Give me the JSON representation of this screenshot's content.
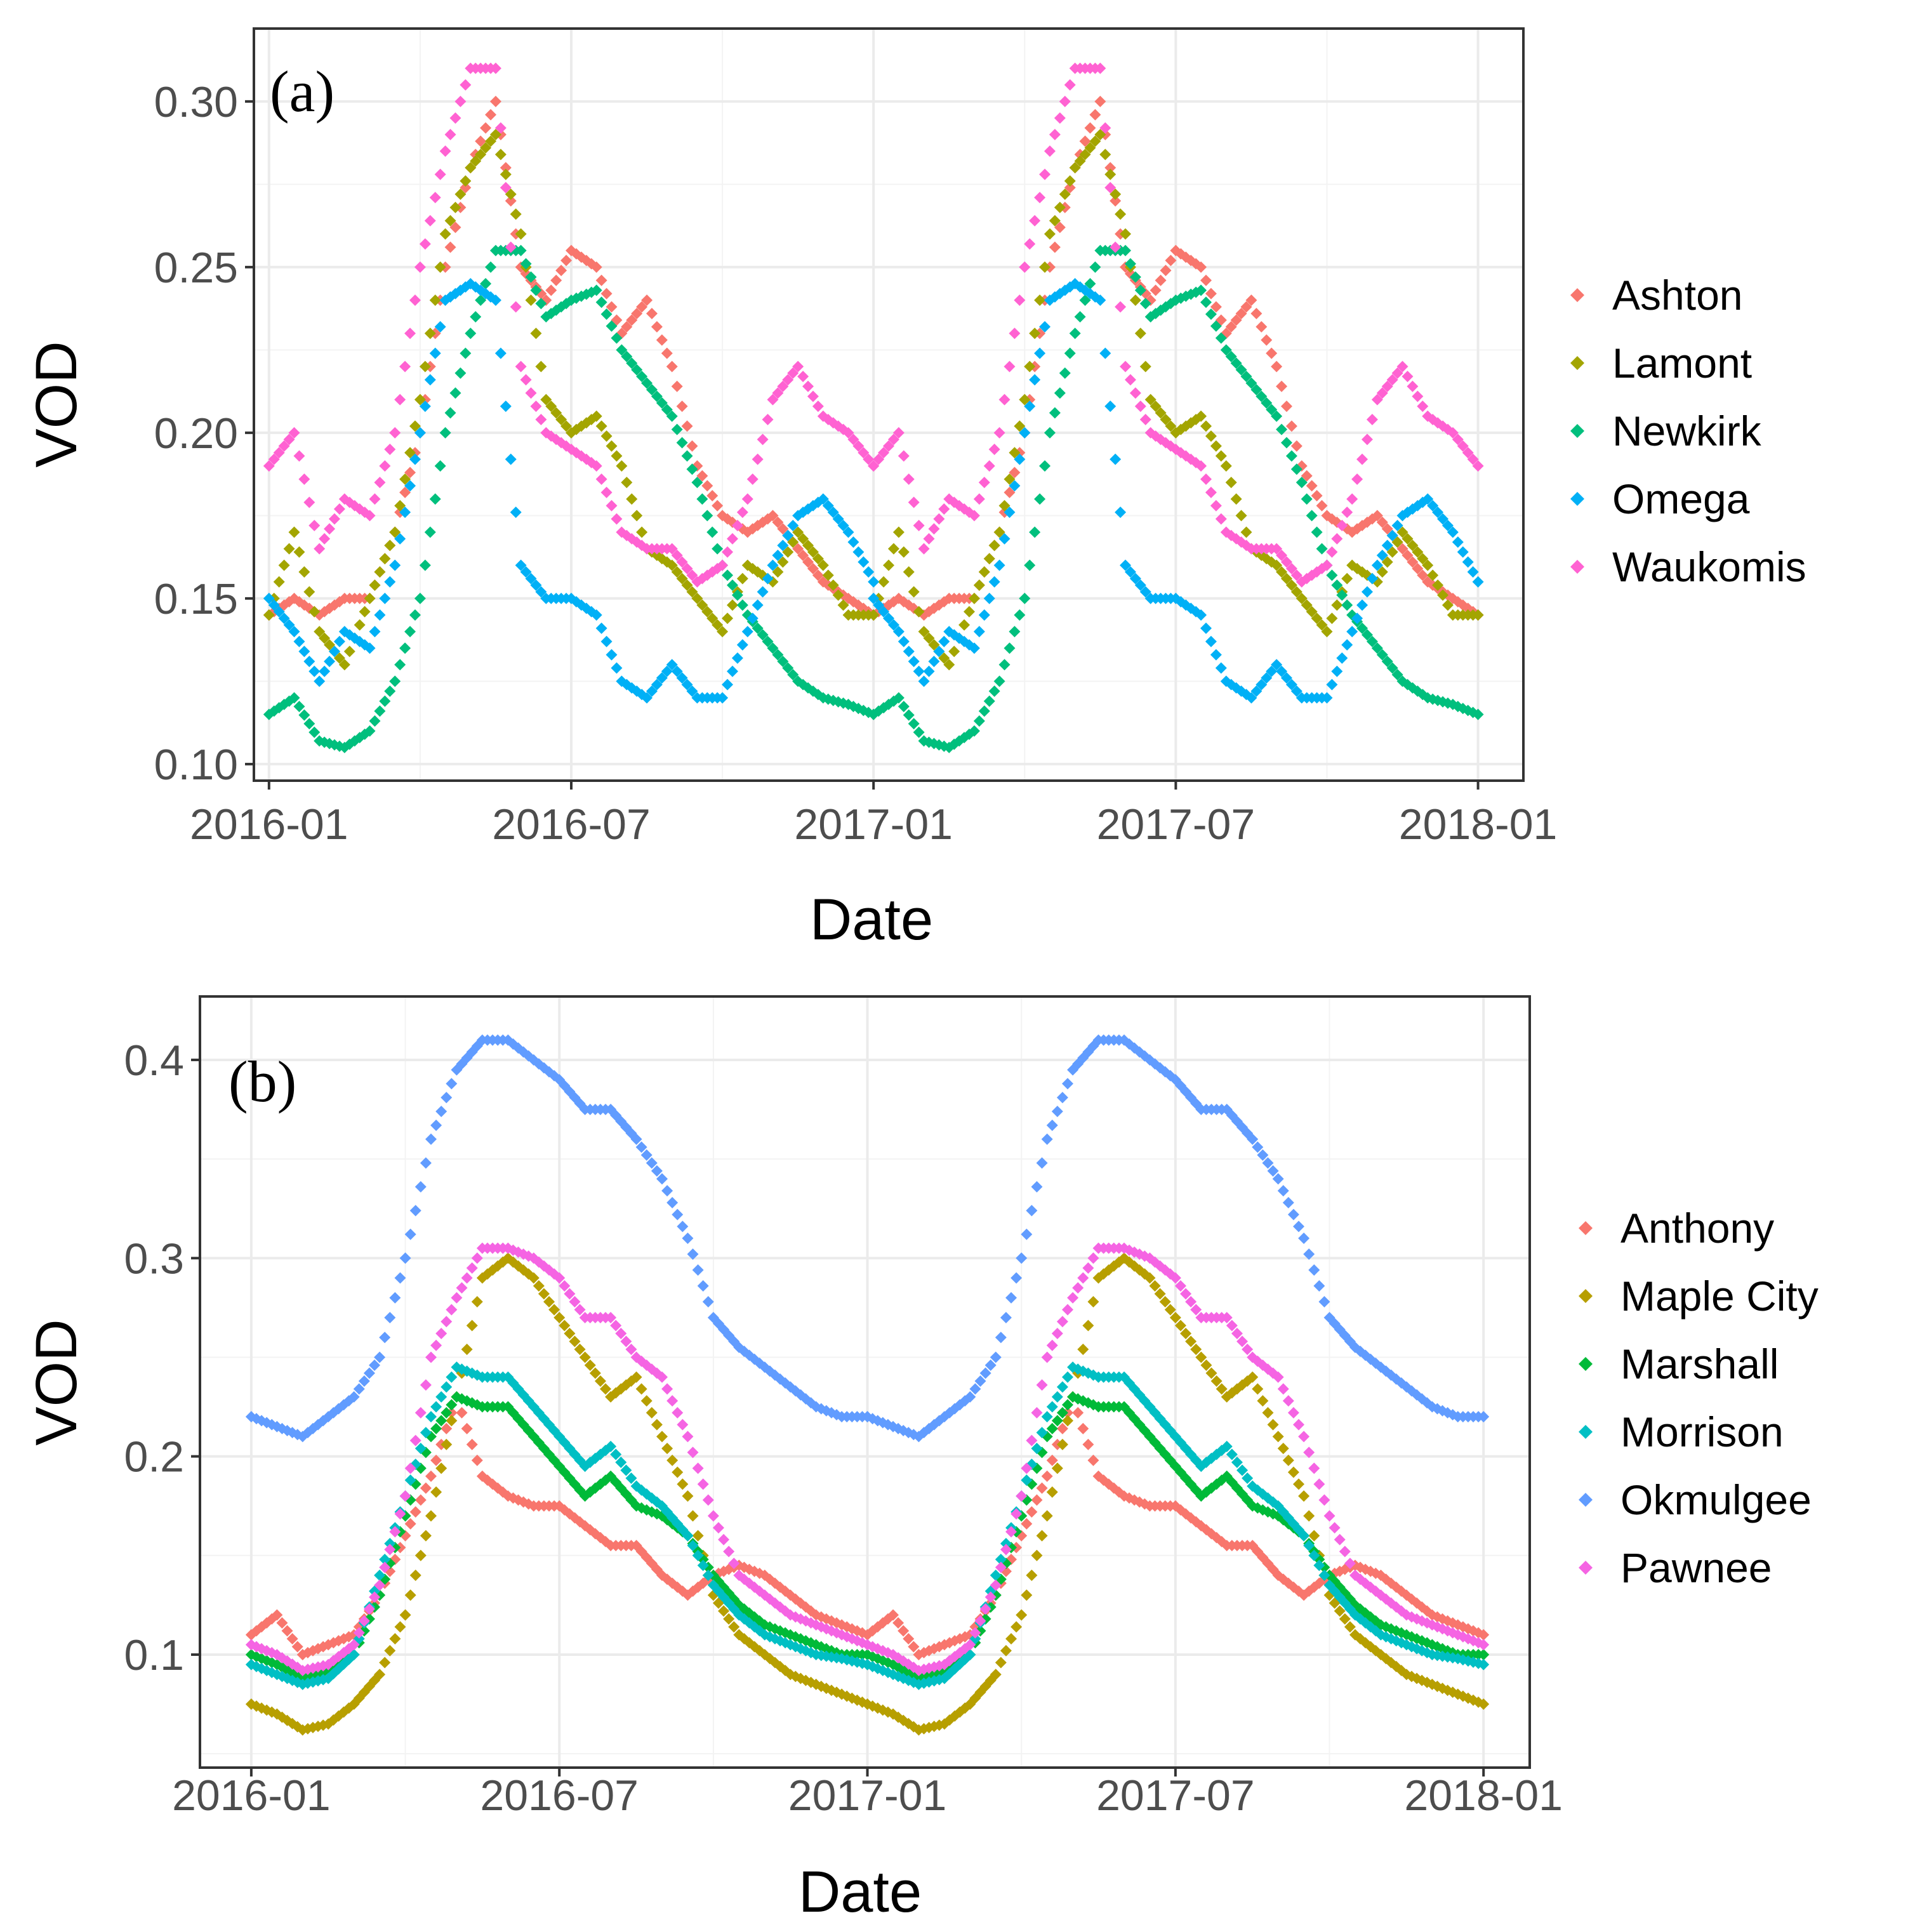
{
  "chart_data": [
    {
      "panel": "(a)",
      "type": "scatter",
      "xlabel": "Date",
      "ylabel": "VOD",
      "x_ticks": [
        "2016-01",
        "2016-07",
        "2017-01",
        "2017-07",
        "2018-01"
      ],
      "y_ticks": [
        "0.10",
        "0.15",
        "0.20",
        "0.25",
        "0.30"
      ],
      "xlim": [
        -0.3,
        24.9
      ],
      "ylim": [
        0.095,
        0.322
      ],
      "x_unit": "months since 2016-01",
      "legend_position": "right",
      "series": [
        {
          "name": "Ashton",
          "color": "#F8766D",
          "x": [
            0,
            0.5,
            1,
            1.5,
            2,
            2.5,
            3,
            3.5,
            4,
            4.5,
            5,
            5.5,
            6,
            6.5,
            7,
            7.5,
            8,
            8.5,
            9,
            9.5,
            10,
            10.5,
            11,
            11.5,
            12
          ],
          "y": [
            0.145,
            0.15,
            0.145,
            0.15,
            0.15,
            0.17,
            0.2,
            0.25,
            0.28,
            0.3,
            0.25,
            0.24,
            0.255,
            0.25,
            0.23,
            0.24,
            0.22,
            0.19,
            0.175,
            0.17,
            0.175,
            0.165,
            0.155,
            0.15,
            0.145
          ]
        },
        {
          "name": "Lamont",
          "color": "#A3A500",
          "x": [
            0,
            0.5,
            1,
            1.5,
            2,
            2.5,
            3,
            3.5,
            4,
            4.5,
            5,
            5.5,
            6,
            6.5,
            7,
            7.5,
            8,
            8.5,
            9,
            9.5,
            10,
            10.5,
            11,
            11.5,
            12
          ],
          "y": [
            0.145,
            0.17,
            0.14,
            0.13,
            0.15,
            0.17,
            0.21,
            0.26,
            0.28,
            0.29,
            0.26,
            0.21,
            0.2,
            0.205,
            0.19,
            0.165,
            0.16,
            0.15,
            0.14,
            0.16,
            0.155,
            0.17,
            0.16,
            0.145,
            0.145
          ]
        },
        {
          "name": "Newkirk",
          "color": "#00BF7D",
          "x": [
            0,
            0.5,
            1,
            1.5,
            2,
            2.5,
            3,
            3.5,
            4,
            4.5,
            5,
            5.5,
            6,
            6.5,
            7,
            7.5,
            8,
            8.5,
            9,
            9.5,
            10,
            10.5,
            11,
            11.5,
            12
          ],
          "y": [
            0.115,
            0.12,
            0.107,
            0.105,
            0.11,
            0.125,
            0.15,
            0.2,
            0.23,
            0.255,
            0.255,
            0.235,
            0.24,
            0.243,
            0.225,
            0.215,
            0.205,
            0.185,
            0.16,
            0.145,
            0.135,
            0.125,
            0.12,
            0.118,
            0.115
          ]
        },
        {
          "name": "Omega",
          "color": "#00B0F6",
          "x": [
            0,
            0.5,
            1,
            1.5,
            2,
            2.5,
            3,
            3.5,
            4,
            4.5,
            5,
            5.5,
            6,
            6.5,
            7,
            7.5,
            8,
            8.5,
            9,
            9.5,
            10,
            10.5,
            11,
            11.5,
            12
          ],
          "y": [
            0.15,
            0.14,
            0.125,
            0.14,
            0.135,
            0.16,
            0.2,
            0.24,
            0.245,
            0.24,
            0.16,
            0.15,
            0.15,
            0.145,
            0.125,
            0.12,
            0.13,
            0.12,
            0.12,
            0.14,
            0.16,
            0.175,
            0.18,
            0.17,
            0.155
          ]
        },
        {
          "name": "Waukomis",
          "color": "#FF62D2",
          "x": [
            0,
            0.5,
            1,
            1.5,
            2,
            2.5,
            3,
            3.5,
            4,
            4.5,
            5,
            5.5,
            6,
            6.5,
            7,
            7.5,
            8,
            8.5,
            9,
            9.5,
            10,
            10.5,
            11,
            11.5,
            12
          ],
          "y": [
            0.19,
            0.2,
            0.165,
            0.18,
            0.175,
            0.2,
            0.25,
            0.285,
            0.31,
            0.31,
            0.22,
            0.2,
            0.195,
            0.19,
            0.17,
            0.165,
            0.165,
            0.155,
            0.16,
            0.18,
            0.21,
            0.22,
            0.205,
            0.2,
            0.19
          ]
        }
      ]
    },
    {
      "panel": "(b)",
      "type": "scatter",
      "xlabel": "Date",
      "ylabel": "VOD",
      "x_ticks": [
        "2016-01",
        "2016-07",
        "2017-01",
        "2017-07",
        "2018-01"
      ],
      "y_ticks": [
        "0.1",
        "0.2",
        "0.3",
        "0.4"
      ],
      "xlim": [
        -1,
        24.9
      ],
      "ylim": [
        0.043,
        0.432
      ],
      "x_unit": "months since 2016-01",
      "legend_position": "right",
      "series": [
        {
          "name": "Anthony",
          "color": "#F8766D",
          "x": [
            0,
            0.5,
            1,
            1.5,
            2,
            2.5,
            3,
            3.5,
            4,
            4.5,
            5,
            5.5,
            6,
            6.5,
            7,
            7.5,
            8,
            8.5,
            9,
            9.5,
            10,
            10.5,
            11,
            11.5,
            12
          ],
          "y": [
            0.11,
            0.12,
            0.1,
            0.105,
            0.11,
            0.13,
            0.16,
            0.19,
            0.23,
            0.19,
            0.18,
            0.175,
            0.175,
            0.165,
            0.155,
            0.155,
            0.14,
            0.13,
            0.14,
            0.145,
            0.14,
            0.13,
            0.12,
            0.115,
            0.11
          ]
        },
        {
          "name": "Maple City",
          "color": "#B79F00",
          "x": [
            0,
            0.5,
            1,
            1.5,
            2,
            2.5,
            3,
            3.5,
            4,
            4.5,
            5,
            5.5,
            6,
            6.5,
            7,
            7.5,
            8,
            8.5,
            9,
            9.5,
            10,
            10.5,
            11,
            11.5,
            12
          ],
          "y": [
            0.075,
            0.07,
            0.062,
            0.065,
            0.075,
            0.09,
            0.12,
            0.17,
            0.23,
            0.29,
            0.3,
            0.29,
            0.27,
            0.25,
            0.23,
            0.24,
            0.21,
            0.18,
            0.13,
            0.11,
            0.1,
            0.09,
            0.085,
            0.08,
            0.075
          ]
        },
        {
          "name": "Marshall",
          "color": "#00BA38",
          "x": [
            0,
            0.5,
            1,
            1.5,
            2,
            2.5,
            3,
            3.5,
            4,
            4.5,
            5,
            5.5,
            6,
            6.5,
            7,
            7.5,
            8,
            8.5,
            9,
            9.5,
            10,
            10.5,
            11,
            11.5,
            12
          ],
          "y": [
            0.1,
            0.095,
            0.088,
            0.092,
            0.1,
            0.13,
            0.17,
            0.21,
            0.23,
            0.225,
            0.225,
            0.21,
            0.195,
            0.18,
            0.19,
            0.175,
            0.17,
            0.16,
            0.14,
            0.125,
            0.115,
            0.11,
            0.105,
            0.1,
            0.1
          ]
        },
        {
          "name": "Morrison",
          "color": "#00BFC4",
          "x": [
            0,
            0.5,
            1,
            1.5,
            2,
            2.5,
            3,
            3.5,
            4,
            4.5,
            5,
            5.5,
            6,
            6.5,
            7,
            7.5,
            8,
            8.5,
            9,
            9.5,
            10,
            10.5,
            11,
            11.5,
            12
          ],
          "y": [
            0.095,
            0.09,
            0.085,
            0.088,
            0.1,
            0.14,
            0.18,
            0.22,
            0.245,
            0.24,
            0.24,
            0.225,
            0.21,
            0.195,
            0.205,
            0.185,
            0.175,
            0.16,
            0.135,
            0.12,
            0.11,
            0.105,
            0.1,
            0.098,
            0.095
          ]
        },
        {
          "name": "Okmulgee",
          "color": "#619CFF",
          "x": [
            0,
            0.5,
            1,
            1.5,
            2,
            2.5,
            3,
            3.5,
            4,
            4.5,
            5,
            5.5,
            6,
            6.5,
            7,
            7.5,
            8,
            8.5,
            9,
            9.5,
            10,
            10.5,
            11,
            11.5,
            12
          ],
          "y": [
            0.22,
            0.215,
            0.21,
            0.22,
            0.23,
            0.25,
            0.3,
            0.36,
            0.395,
            0.41,
            0.41,
            0.4,
            0.39,
            0.375,
            0.375,
            0.36,
            0.34,
            0.31,
            0.27,
            0.255,
            0.245,
            0.235,
            0.225,
            0.22,
            0.22
          ]
        },
        {
          "name": "Pawnee",
          "color": "#F564E3",
          "x": [
            0,
            0.5,
            1,
            1.5,
            2,
            2.5,
            3,
            3.5,
            4,
            4.5,
            5,
            5.5,
            6,
            6.5,
            7,
            7.5,
            8,
            8.5,
            9,
            9.5,
            10,
            10.5,
            11,
            11.5,
            12
          ],
          "y": [
            0.105,
            0.1,
            0.092,
            0.095,
            0.105,
            0.135,
            0.18,
            0.25,
            0.28,
            0.305,
            0.305,
            0.3,
            0.29,
            0.27,
            0.27,
            0.25,
            0.24,
            0.21,
            0.17,
            0.14,
            0.13,
            0.12,
            0.115,
            0.11,
            0.105
          ]
        }
      ]
    }
  ]
}
